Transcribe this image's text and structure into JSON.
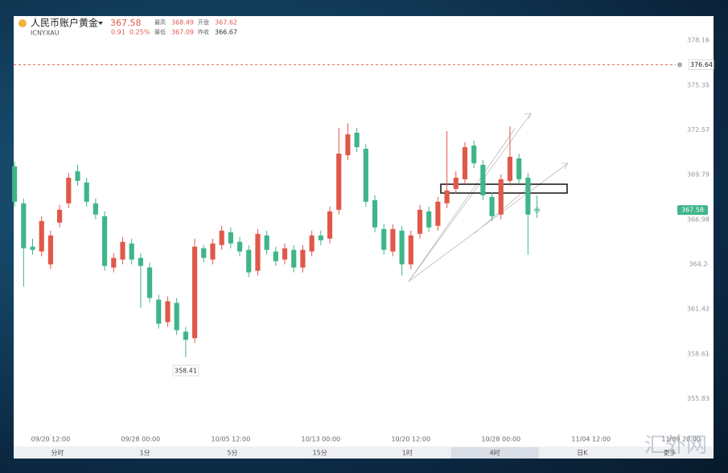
{
  "header": {
    "title": "人民币账户黄金",
    "symbol": "ICNYXAU",
    "price": 367.58,
    "change": 0.91,
    "change_pct": "0.25%",
    "high_label": "最高",
    "high": 368.49,
    "open_label": "开盘",
    "open": 367.62,
    "low_label": "最低",
    "low": 367.09,
    "prev_label": "昨收",
    "prev_close": 366.67
  },
  "chart_data": {
    "type": "candlestick",
    "x": [
      0,
      1,
      2,
      3,
      4,
      5,
      6,
      7,
      8,
      9,
      10,
      11,
      12,
      13,
      14,
      15,
      16,
      17,
      18,
      19,
      20,
      21,
      22,
      23,
      24,
      25,
      26,
      27,
      28,
      29,
      30,
      31,
      32,
      33,
      34,
      35,
      36,
      37,
      38,
      39,
      40,
      41,
      42,
      43,
      44,
      45,
      46,
      47,
      48,
      49,
      50,
      51,
      52,
      53,
      54,
      55,
      56,
      57,
      58
    ],
    "open": [
      370.3,
      368.0,
      365.3,
      365.0,
      364.2,
      366.8,
      368.0,
      370.0,
      369.3,
      368.0,
      367.2,
      364.0,
      364.5,
      365.5,
      364.6,
      364.0,
      362.0,
      360.6,
      361.8,
      360.0,
      359.6,
      365.2,
      364.5,
      365.4,
      366.2,
      365.6,
      365.1,
      363.8,
      366.0,
      365.0,
      364.5,
      365.1,
      364.0,
      365.0,
      366.0,
      365.8,
      367.6,
      371.0,
      372.4,
      371.4,
      368.2,
      366.4,
      365.0,
      366.3,
      364.2,
      366.1,
      367.5,
      366.6,
      368.0,
      368.9,
      369.5,
      371.6,
      370.4,
      368.4,
      367.3,
      369.4,
      370.8,
      369.6,
      367.62
    ],
    "high": [
      370.6,
      368.3,
      365.8,
      367.2,
      366.3,
      367.9,
      369.9,
      370.4,
      369.6,
      368.3,
      367.5,
      364.9,
      365.9,
      365.8,
      364.9,
      364.3,
      362.3,
      362.2,
      362.1,
      360.3,
      365.8,
      365.4,
      365.8,
      366.6,
      366.5,
      365.9,
      365.4,
      366.4,
      366.3,
      365.3,
      365.5,
      365.4,
      365.4,
      366.3,
      366.3,
      367.8,
      372.7,
      373.0,
      372.7,
      371.7,
      368.5,
      366.7,
      366.7,
      366.6,
      366.3,
      367.9,
      367.8,
      368.4,
      372.5,
      370.0,
      371.8,
      371.9,
      370.7,
      368.7,
      369.8,
      372.8,
      371.1,
      369.9,
      368.49
    ],
    "low": [
      367.8,
      362.8,
      364.8,
      364.7,
      363.9,
      366.5,
      367.7,
      369.1,
      367.8,
      367.0,
      363.8,
      363.7,
      364.2,
      364.2,
      361.5,
      361.8,
      360.2,
      360.3,
      359.8,
      358.41,
      359.3,
      364.3,
      364.2,
      365.1,
      365.2,
      364.7,
      363.4,
      363.5,
      364.8,
      364.1,
      364.2,
      363.7,
      363.7,
      364.7,
      365.4,
      365.5,
      367.3,
      370.7,
      371.2,
      367.8,
      366.2,
      364.8,
      364.7,
      363.5,
      363.9,
      365.8,
      366.2,
      366.3,
      367.7,
      368.6,
      369.2,
      370.2,
      368.2,
      366.9,
      367.0,
      369.1,
      369.2,
      364.8,
      367.09
    ],
    "close": [
      368.1,
      365.2,
      365.1,
      366.9,
      366.0,
      367.6,
      369.6,
      369.4,
      368.1,
      367.3,
      364.1,
      364.6,
      365.6,
      364.5,
      364.1,
      362.1,
      360.5,
      361.9,
      360.1,
      359.5,
      365.3,
      364.6,
      365.5,
      366.3,
      365.5,
      365.0,
      363.7,
      366.1,
      365.1,
      364.4,
      365.2,
      364.0,
      365.1,
      366.0,
      365.7,
      367.5,
      371.1,
      372.3,
      371.5,
      368.1,
      366.5,
      365.1,
      366.4,
      364.2,
      366.0,
      367.6,
      366.5,
      368.1,
      368.8,
      369.6,
      371.5,
      370.5,
      368.5,
      367.2,
      369.5,
      370.9,
      369.5,
      367.3,
      367.58
    ],
    "up_color": "#e0584a",
    "down_color": "#3fb58a",
    "xlim": [
      -0.1,
      77.6
    ],
    "ylim": [
      352.85,
      379.67
    ],
    "xticks": [
      {
        "value": 4,
        "label": "09/20 12:00"
      },
      {
        "value": 14,
        "label": "09/28 00:00"
      },
      {
        "value": 24,
        "label": "10/05 12:00"
      },
      {
        "value": 34,
        "label": "10/13 00:00"
      },
      {
        "value": 44,
        "label": "10/20 12:00"
      },
      {
        "value": 54,
        "label": "10/28 00:00"
      },
      {
        "value": 64,
        "label": "11/04 12:00"
      },
      {
        "value": 74,
        "label": "11/09 20:00"
      }
    ],
    "yticks": [
      378.16,
      375.35,
      372.57,
      369.79,
      366.98,
      364.2,
      {
        "value": 361.42,
        "label": "361.42"
      },
      358.61,
      355.83
    ],
    "alert_line": 376.64,
    "periods": [
      "分时",
      "1分",
      "5分",
      "15分",
      "1时",
      "4时",
      "日K",
      "更多"
    ],
    "selected_period_index": 5,
    "watermark": "汇外网"
  }
}
